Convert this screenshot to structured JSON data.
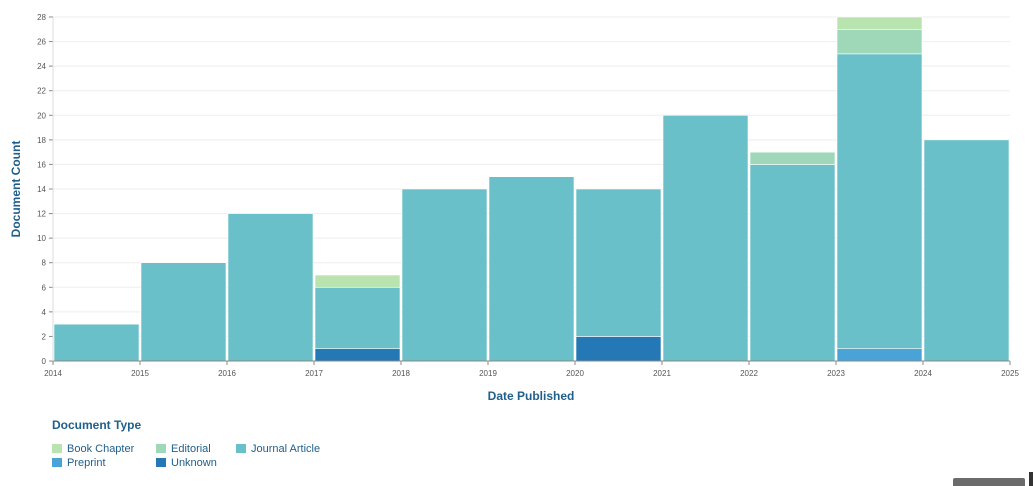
{
  "chart_data": {
    "type": "bar",
    "stacked": true,
    "xlabel": "Date Published",
    "ylabel": "Document Count",
    "ylim": [
      0,
      28
    ],
    "y_ticks": [
      0,
      2,
      4,
      6,
      8,
      10,
      12,
      14,
      16,
      18,
      20,
      22,
      24,
      26,
      28
    ],
    "x_ticks": [
      "2014",
      "2015",
      "2016",
      "2017",
      "2018",
      "2019",
      "2020",
      "2021",
      "2022",
      "2023",
      "2024",
      "2025"
    ],
    "categories": [
      "2014",
      "2015",
      "2016",
      "2017",
      "2018",
      "2019",
      "2020",
      "2021",
      "2022",
      "2023",
      "2024"
    ],
    "series": [
      {
        "name": "Unknown",
        "color": "#2378b5",
        "values": [
          0,
          0,
          0,
          1,
          0,
          0,
          2,
          0,
          0,
          0,
          0
        ]
      },
      {
        "name": "Preprint",
        "color": "#4aa3d6",
        "values": [
          0,
          0,
          0,
          0,
          0,
          0,
          0,
          0,
          0,
          1,
          0
        ]
      },
      {
        "name": "Journal Article",
        "color": "#69c0c8",
        "values": [
          3,
          8,
          12,
          5,
          14,
          15,
          12,
          20,
          16,
          24,
          18
        ]
      },
      {
        "name": "Editorial",
        "color": "#9fd8b8",
        "values": [
          0,
          0,
          0,
          0,
          0,
          0,
          0,
          0,
          1,
          2,
          0
        ]
      },
      {
        "name": "Book Chapter",
        "color": "#b9e4b0",
        "values": [
          0,
          0,
          0,
          1,
          0,
          0,
          0,
          0,
          0,
          1,
          0
        ]
      }
    ],
    "grid": true,
    "legend": {
      "title": "Document Type",
      "position": "bottom-left",
      "order": [
        "Book Chapter",
        "Editorial",
        "Journal Article",
        "Preprint",
        "Unknown"
      ]
    }
  }
}
